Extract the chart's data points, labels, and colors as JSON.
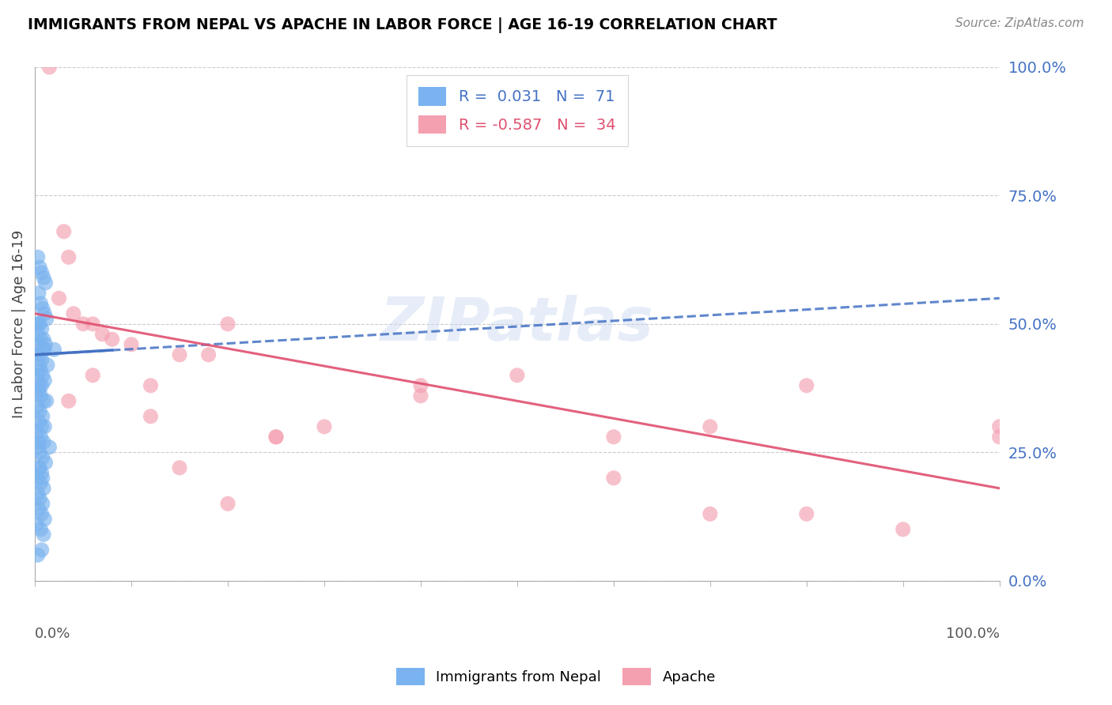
{
  "title": "IMMIGRANTS FROM NEPAL VS APACHE IN LABOR FORCE | AGE 16-19 CORRELATION CHART",
  "source": "Source: ZipAtlas.com",
  "ylabel": "In Labor Force | Age 16-19",
  "ytick_vals": [
    0,
    25,
    50,
    75,
    100
  ],
  "ytick_labels": [
    "0.0%",
    "25.0%",
    "50.0%",
    "75.0%",
    "100.0%"
  ],
  "xlim": [
    0,
    100
  ],
  "ylim": [
    0,
    100
  ],
  "nepal_color": "#7ab3ef",
  "apache_color": "#f4a0b0",
  "nepal_trend_color": "#4472C4",
  "apache_trend_color": "#E05070",
  "watermark": "ZIPatlas",
  "legend_r_nepal": "R =  0.031",
  "legend_n_nepal": "N =  71",
  "legend_r_apache": "R = -0.587",
  "legend_n_apache": "N =  34",
  "nepal_x": [
    0.3,
    0.5,
    0.7,
    0.9,
    1.1,
    0.4,
    0.6,
    0.8,
    1.0,
    1.2,
    0.2,
    0.5,
    0.7,
    0.3,
    0.6,
    0.9,
    1.1,
    0.4,
    0.8,
    1.0,
    0.2,
    0.5,
    0.7,
    1.3,
    0.4,
    0.6,
    0.3,
    0.8,
    1.0,
    0.5,
    0.7,
    0.2,
    0.4,
    0.6,
    0.9,
    1.2,
    0.3,
    0.5,
    0.8,
    0.4,
    0.7,
    1.0,
    0.2,
    0.6,
    0.9,
    0.3,
    0.5,
    0.8,
    1.1,
    0.4,
    0.7,
    0.2,
    0.6,
    0.9,
    0.3,
    0.5,
    0.8,
    0.4,
    0.7,
    1.0,
    0.2,
    0.6,
    0.9,
    0.3,
    0.5,
    0.8,
    0.4,
    0.7,
    2.0,
    1.5,
    0.3
  ],
  "nepal_y": [
    63,
    61,
    60,
    59,
    58,
    56,
    54,
    53,
    52,
    51,
    50,
    50,
    49,
    48,
    47,
    47,
    46,
    46,
    45,
    45,
    44,
    44,
    43,
    42,
    42,
    41,
    40,
    40,
    39,
    38,
    38,
    37,
    37,
    36,
    35,
    35,
    34,
    33,
    32,
    31,
    30,
    30,
    29,
    28,
    27,
    26,
    25,
    24,
    23,
    22,
    21,
    20,
    19,
    18,
    17,
    16,
    15,
    14,
    13,
    12,
    11,
    10,
    9,
    50,
    22,
    20,
    27,
    6,
    45,
    26,
    5
  ],
  "apache_x": [
    1.5,
    3.0,
    3.5,
    5.0,
    7.0,
    10.0,
    15.0,
    20.0,
    2.5,
    4.0,
    6.0,
    8.0,
    12.0,
    18.0,
    25.0,
    30.0,
    40.0,
    50.0,
    60.0,
    70.0,
    80.0,
    100.0,
    3.5,
    6.0,
    12.0,
    25.0,
    40.0,
    60.0,
    80.0,
    100.0,
    15.0,
    20.0,
    70.0,
    90.0
  ],
  "apache_y": [
    100,
    68,
    63,
    50,
    48,
    46,
    44,
    50,
    55,
    52,
    50,
    47,
    38,
    44,
    28,
    30,
    38,
    40,
    28,
    30,
    38,
    30,
    35,
    40,
    32,
    28,
    36,
    20,
    13,
    28,
    22,
    15,
    13,
    10
  ],
  "nepal_trend_x0": 0,
  "nepal_trend_y0": 44,
  "nepal_trend_x1": 100,
  "nepal_trend_y1": 55,
  "apache_trend_x0": 0,
  "apache_trend_y0": 52,
  "apache_trend_x1": 100,
  "apache_trend_y1": 18
}
